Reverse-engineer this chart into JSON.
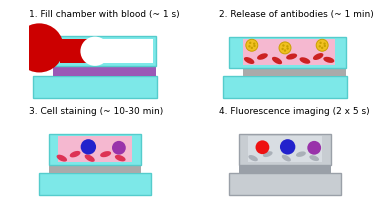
{
  "title1": "1. Fill chamber with blood (~ 1 s)",
  "title2": "2. Release of antibodies (~ 1 min)",
  "title3": "3. Cell staining (~ 10-30 min)",
  "title4": "4. Fluorescence imaging (2 x 5 s)",
  "bg_color": "#ffffff",
  "cyan_color": "#7de8e8",
  "cyan_edge": "#55cccc",
  "pink_color": "#f5b8d0",
  "purple_bar": "#9b59b6",
  "gray_bar": "#aaaaaa",
  "blood_red": "#cc0000",
  "rbc_red": "#cc2222",
  "rbc_pink": "#dd3355",
  "blue_cell": "#2222cc",
  "purple_cell": "#9933aa",
  "yellow_ab": "#f0c020",
  "yellow_ab_dark": "#c8a000",
  "gray_light": "#c8cdd2",
  "gray_edge": "#9aa0a8",
  "gray_rbc": "#aab0b8",
  "gray_inner": "#d8dde2",
  "title_fs": 6.5
}
